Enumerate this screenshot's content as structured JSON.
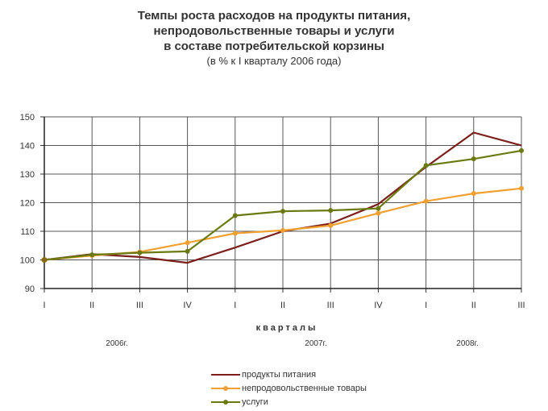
{
  "title": {
    "lines": [
      "Темпы роста расходов на продукты питания,",
      "непродовольственные товары и услуги",
      "в составе потребительской корзины"
    ],
    "subtitle": "(в % к I кварталу 2006 года)"
  },
  "chart_data": {
    "type": "line",
    "title": "Темпы роста расходов на продукты питания, непродовольственные товары и услуги в составе потребительской корзины",
    "subtitle": "(в % к I кварталу 2006 года)",
    "xlabel": "кварталы",
    "ylabel": "",
    "categories": [
      "I",
      "II",
      "III",
      "IV",
      "I",
      "II",
      "III",
      "IV",
      "I",
      "II",
      "III"
    ],
    "year_groups": [
      {
        "label": "2006г.",
        "start": 0,
        "end": 3
      },
      {
        "label": "2007г.",
        "start": 4,
        "end": 7
      },
      {
        "label": "2008г.",
        "start": 8,
        "end": 10
      }
    ],
    "yticks": [
      90,
      100,
      110,
      120,
      130,
      140,
      150
    ],
    "ytick_labels": [
      "90",
      "100",
      "110",
      "120",
      "130",
      "140",
      "150"
    ],
    "ylim": [
      90,
      150
    ],
    "grid": true,
    "legend_position": "bottom",
    "series": [
      {
        "name": "продукты питания",
        "color": "#7a1f1a",
        "marker": false,
        "values": [
          100,
          102,
          101,
          99,
          104.3,
          110,
          112.7,
          119.5,
          132.5,
          144.5,
          140
        ]
      },
      {
        "name": "непродовольственные товары",
        "color": "#f0a030",
        "marker": true,
        "values": [
          100,
          101.5,
          102.8,
          106,
          109.3,
          110.3,
          112,
          116.3,
          120.5,
          123.2,
          125
        ]
      },
      {
        "name": "услуги",
        "color": "#6b7a10",
        "marker": true,
        "values": [
          100,
          101.8,
          102.5,
          103,
          115.5,
          117,
          117.3,
          118,
          133,
          135.3,
          138.2
        ]
      }
    ]
  },
  "legend": [
    {
      "label": "продукты питания",
      "color": "#7a1f1a",
      "marker": false
    },
    {
      "label": "непродовольственные товары",
      "color": "#f0a030",
      "marker": true
    },
    {
      "label": "услуги",
      "color": "#6b7a10",
      "marker": true
    }
  ]
}
